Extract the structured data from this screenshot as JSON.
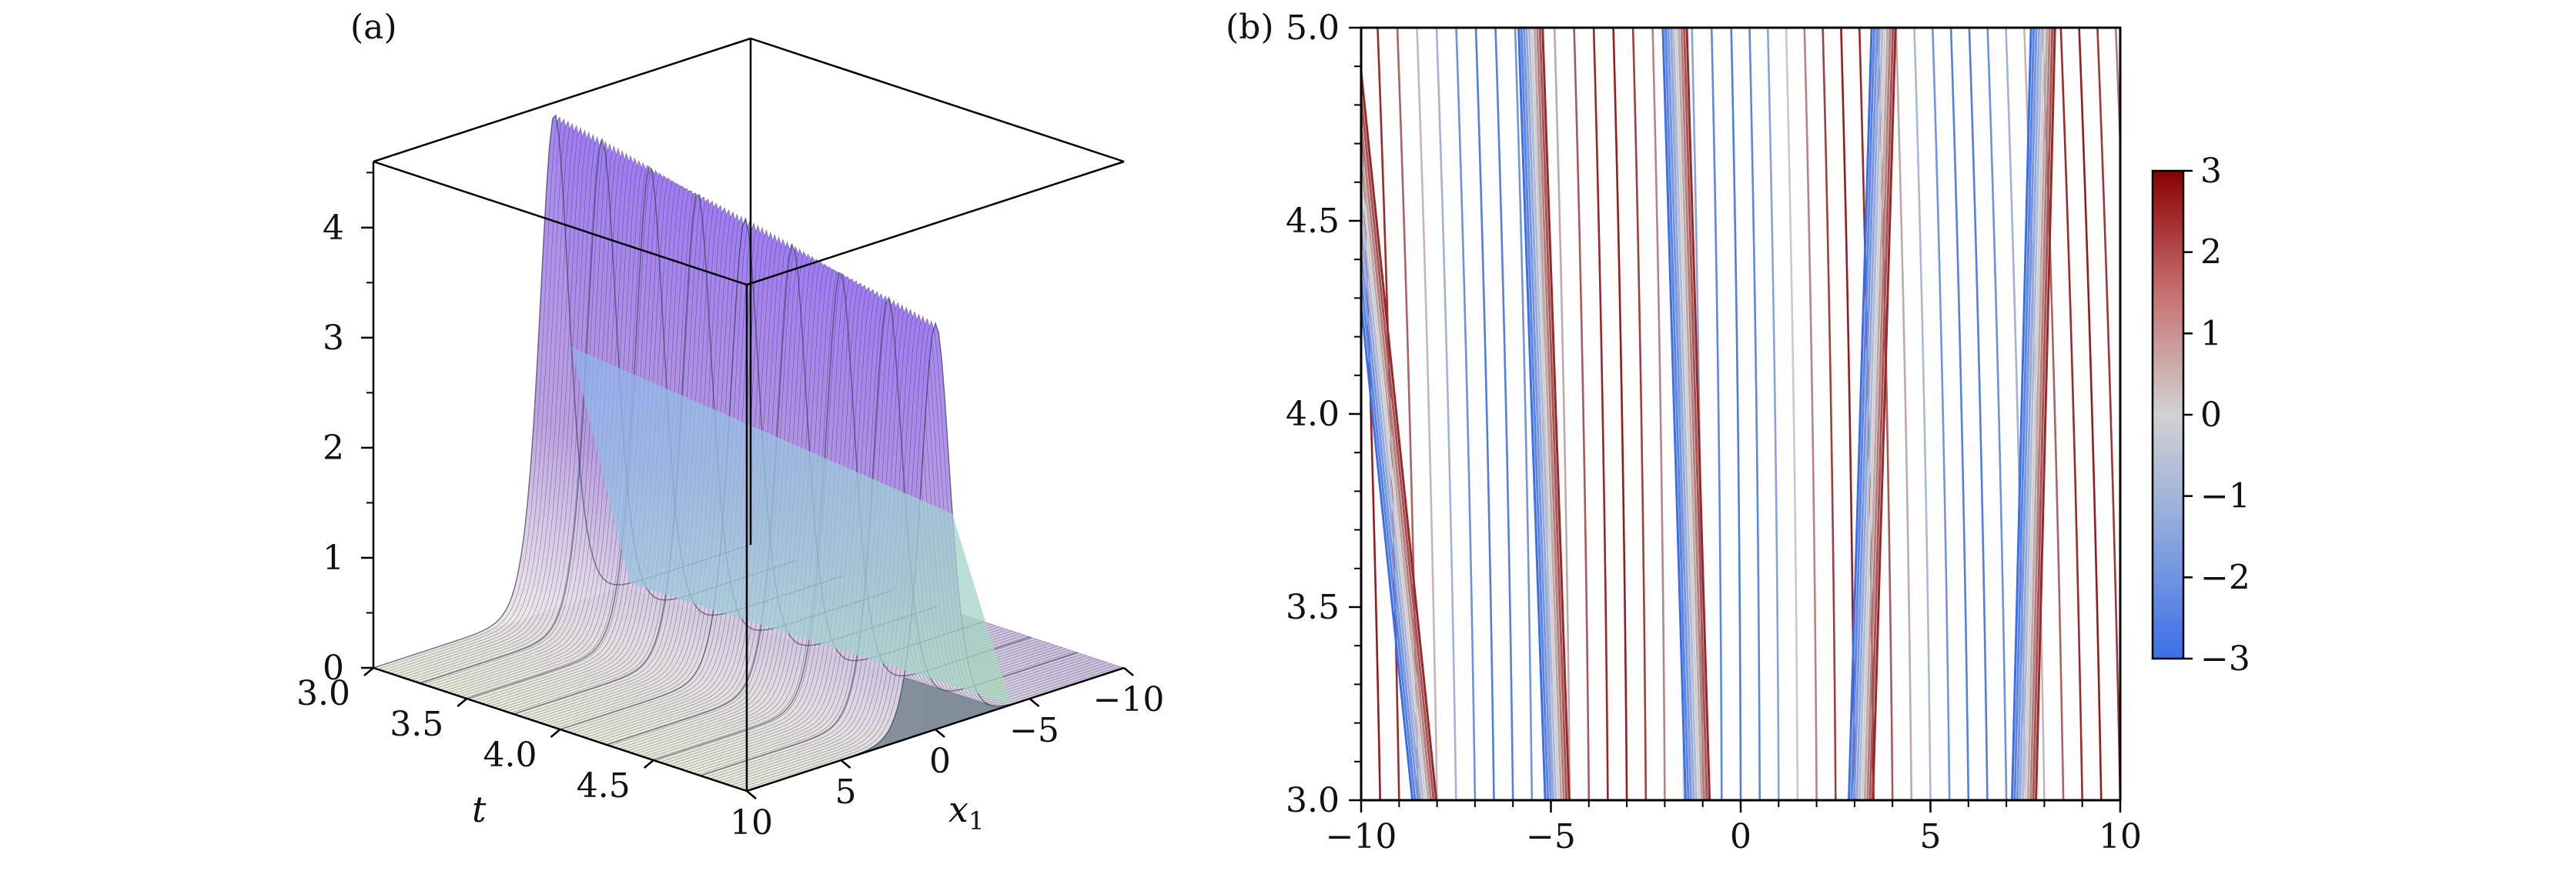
{
  "panels": [
    {
      "label": "(a)",
      "chart_data": {
        "type": "surface",
        "x_axis": {
          "label": "x",
          "label_subscript": "1",
          "range": [
            -10,
            10
          ],
          "ticks": [
            "10",
            "5",
            "0",
            "−5",
            "−10"
          ]
        },
        "t_axis": {
          "label": "t",
          "range": [
            3.0,
            5.0
          ],
          "ticks": [
            "3.0",
            "3.5",
            "4.0",
            "4.5"
          ]
        },
        "z_axis": {
          "range": [
            0,
            4.6
          ],
          "ticks": [
            "0",
            "1",
            "2",
            "3",
            "4"
          ]
        },
        "ridge": {
          "peak_height_t3": 4.5,
          "center_x_t3": 0.4,
          "center_x_t5": 0.0
        },
        "colors": {
          "crest_front": "#9a7cf0",
          "crest_back": "#8cc8e0",
          "base": "#7f8d9c",
          "mesh": "#1e2a3a"
        }
      }
    },
    {
      "label": "(b)",
      "chart_data": {
        "type": "contour",
        "x_axis": {
          "range": [
            -10,
            10
          ],
          "ticks": [
            "−10",
            "−5",
            "0",
            "5",
            "10"
          ]
        },
        "y_axis": {
          "range": [
            3.0,
            5.0
          ],
          "ticks": [
            "3.0",
            "3.5",
            "4.0",
            "4.5",
            "5.0"
          ]
        },
        "colorbar": {
          "range": [
            -3,
            3
          ],
          "ticks": [
            "3",
            "2",
            "1",
            "0",
            "−1",
            "−2",
            "−3"
          ],
          "cmap": "coolwarm",
          "low_color": "#3b6fe8",
          "mid_color": "#cfcfcf",
          "high_color": "#8b0000"
        },
        "phase_jumps": [
          {
            "x_t3": -8.3,
            "x_t5": -10.4
          },
          {
            "x_t3": -4.8,
            "x_t5": -5.5
          },
          {
            "x_t3": -1.1,
            "x_t5": -1.7
          },
          {
            "x_t3": 3.2,
            "x_t5": 3.8
          },
          {
            "x_t3": 7.5,
            "x_t5": 8.0
          }
        ]
      }
    }
  ]
}
